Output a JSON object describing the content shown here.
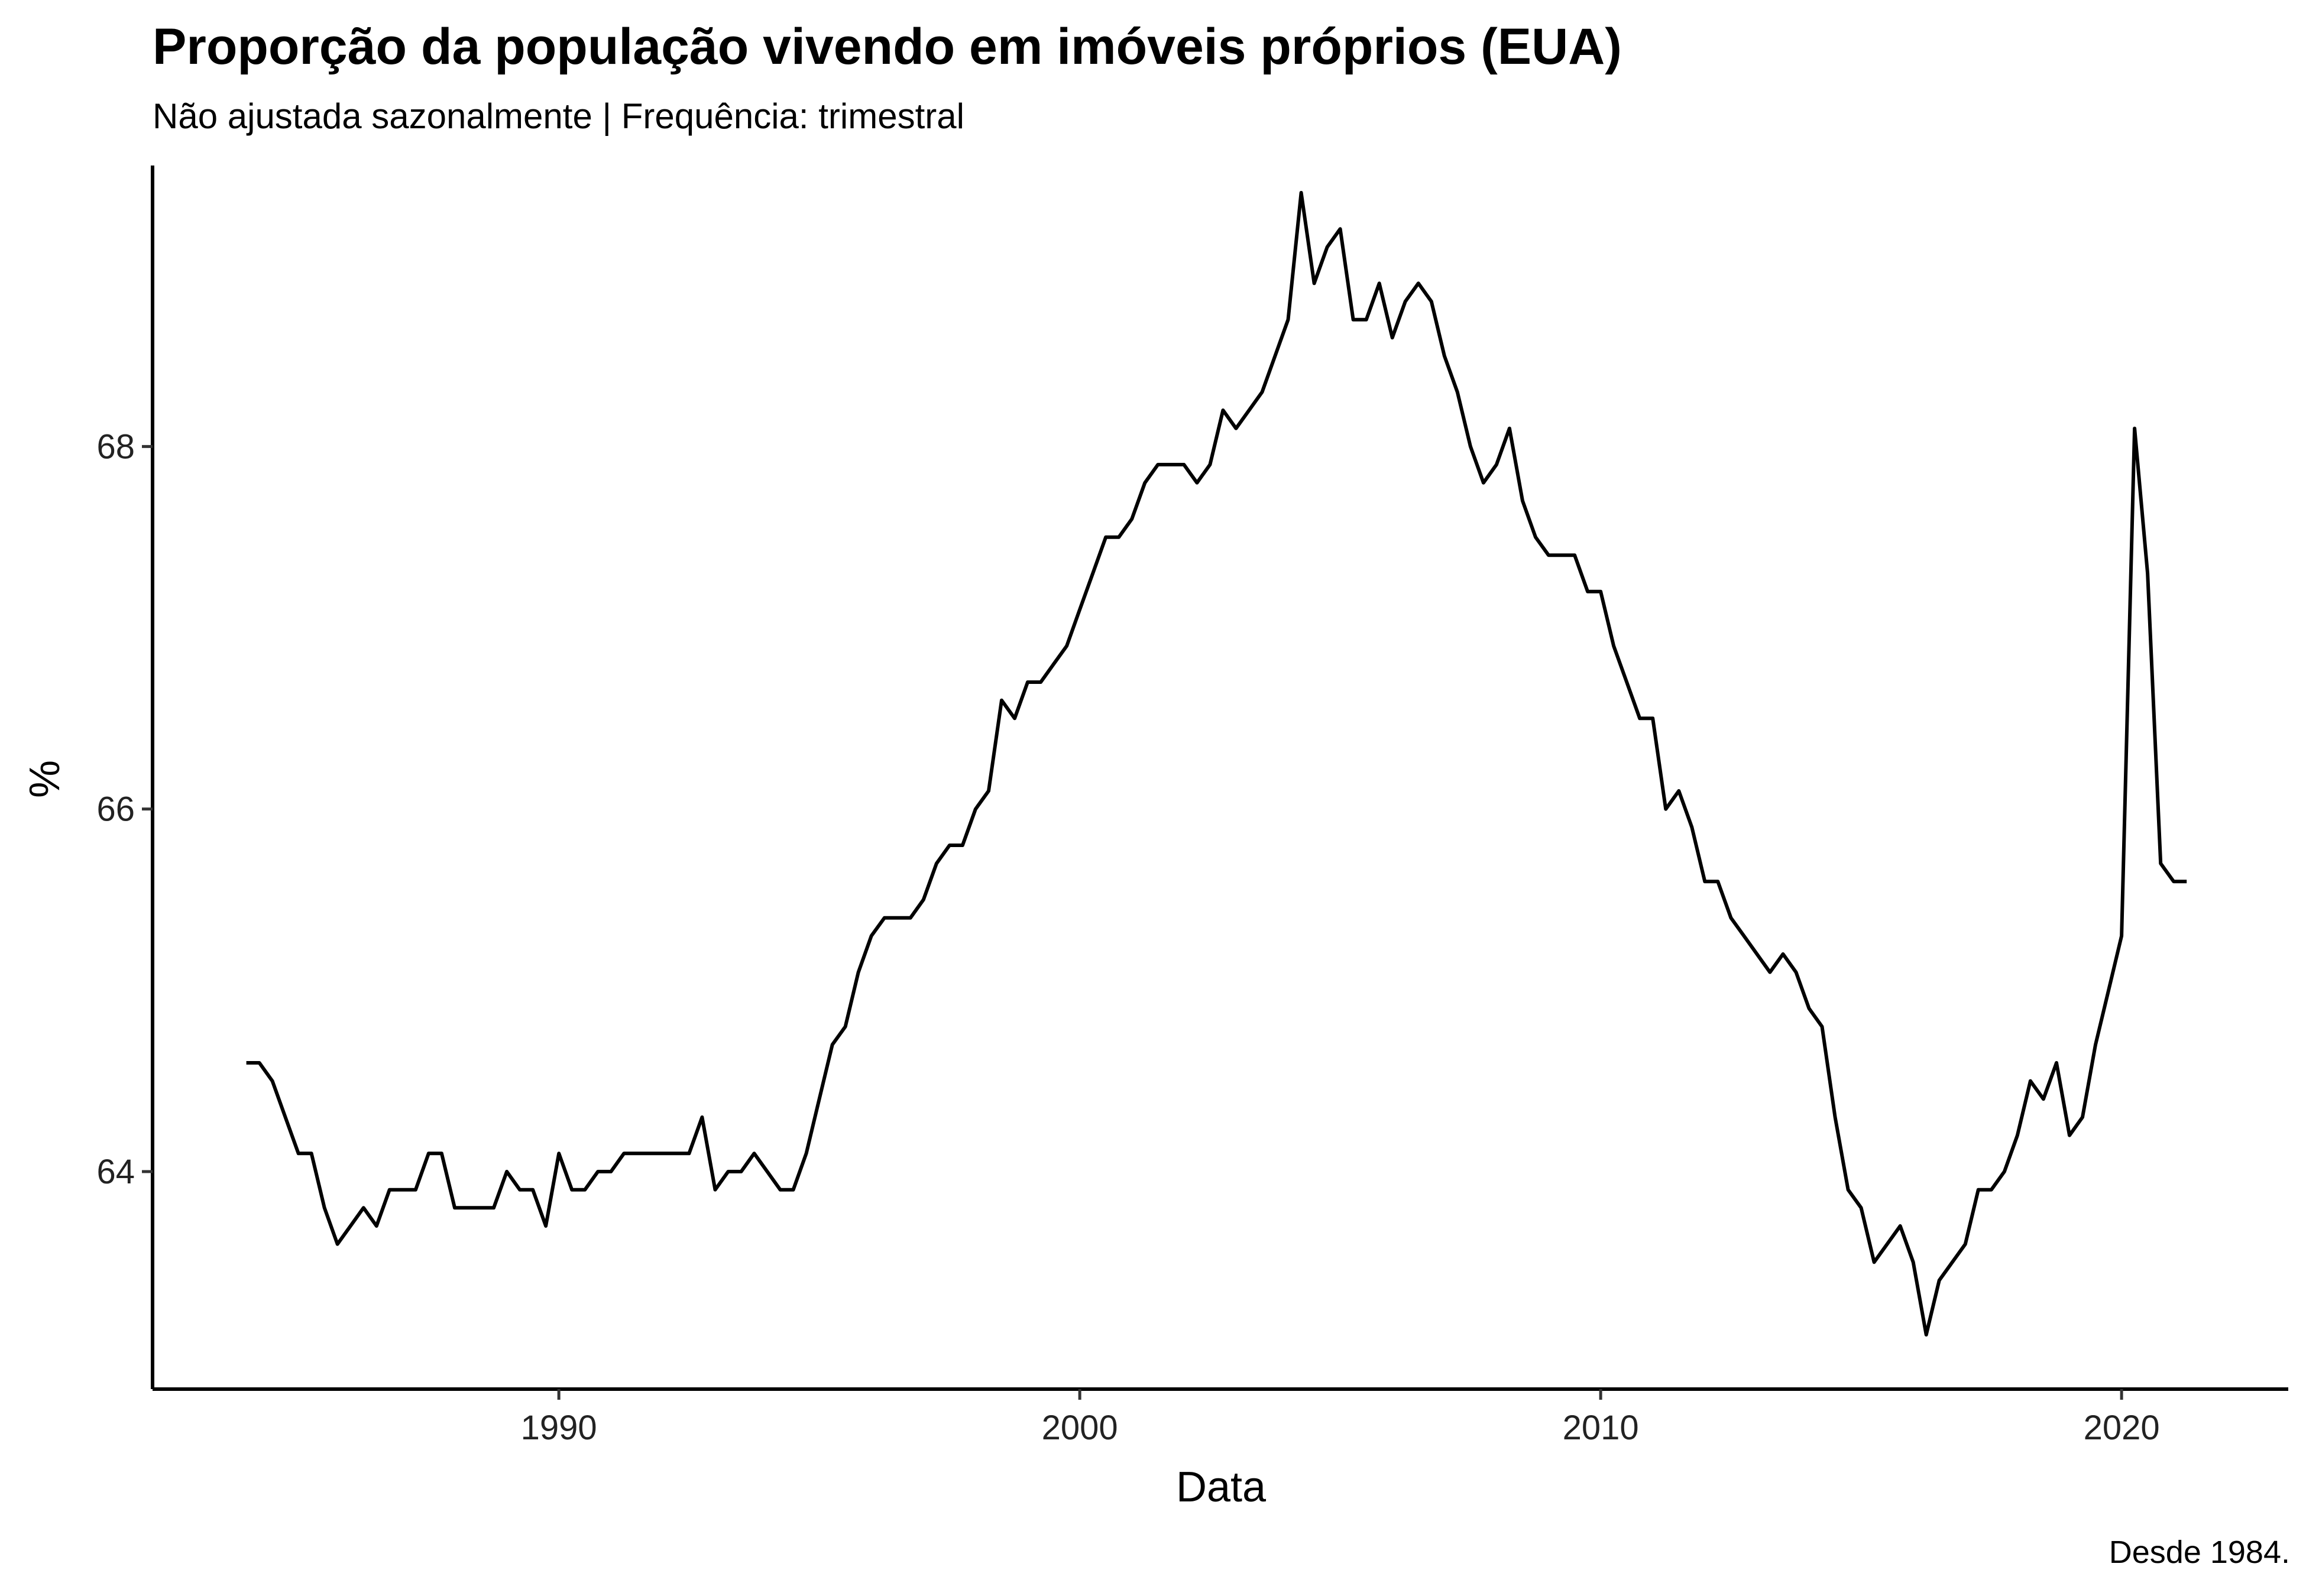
{
  "chart_data": {
    "type": "line",
    "title": "Proporção da população vivendo em imóveis próprios (EUA)",
    "subtitle": "Não ajustada sazonalmente | Frequência: trimestral",
    "caption": "Desde 1984.",
    "xlabel": "Data",
    "ylabel": "%",
    "xlim": [
      1982.2,
      2023.2
    ],
    "ylim": [
      62.8,
      69.55
    ],
    "x_ticks": [
      1990,
      2000,
      2010,
      2020
    ],
    "y_ticks": [
      64,
      66,
      68
    ],
    "grid": false,
    "line_color": "#000000",
    "series": [
      {
        "x": [
          1984.0,
          1984.25,
          1984.5,
          1984.75,
          1985.0,
          1985.25,
          1985.5,
          1985.75,
          1986.0,
          1986.25,
          1986.5,
          1986.75,
          1987.0,
          1987.25,
          1987.5,
          1987.75,
          1988.0,
          1988.25,
          1988.5,
          1988.75,
          1989.0,
          1989.25,
          1989.5,
          1989.75,
          1990.0,
          1990.25,
          1990.5,
          1990.75,
          1991.0,
          1991.25,
          1991.5,
          1991.75,
          1992.0,
          1992.25,
          1992.5,
          1992.75,
          1993.0,
          1993.25,
          1993.5,
          1993.75,
          1994.0,
          1994.25,
          1994.5,
          1994.75,
          1995.0,
          1995.25,
          1995.5,
          1995.75,
          1996.0,
          1996.25,
          1996.5,
          1996.75,
          1997.0,
          1997.25,
          1997.5,
          1997.75,
          1998.0,
          1998.25,
          1998.5,
          1998.75,
          1999.0,
          1999.25,
          1999.5,
          1999.75,
          2000.0,
          2000.25,
          2000.5,
          2000.75,
          2001.0,
          2001.25,
          2001.5,
          2001.75,
          2002.0,
          2002.25,
          2002.5,
          2002.75,
          2003.0,
          2003.25,
          2003.5,
          2003.75,
          2004.0,
          2004.25,
          2004.5,
          2004.75,
          2005.0,
          2005.25,
          2005.5,
          2005.75,
          2006.0,
          2006.25,
          2006.5,
          2006.75,
          2007.0,
          2007.25,
          2007.5,
          2007.75,
          2008.0,
          2008.25,
          2008.5,
          2008.75,
          2009.0,
          2009.25,
          2009.5,
          2009.75,
          2010.0,
          2010.25,
          2010.5,
          2010.75,
          2011.0,
          2011.25,
          2011.5,
          2011.75,
          2012.0,
          2012.25,
          2012.5,
          2012.75,
          2013.0,
          2013.25,
          2013.5,
          2013.75,
          2014.0,
          2014.25,
          2014.5,
          2014.75,
          2015.0,
          2015.25,
          2015.5,
          2015.75,
          2016.0,
          2016.25,
          2016.5,
          2016.75,
          2017.0,
          2017.25,
          2017.5,
          2017.75,
          2018.0,
          2018.25,
          2018.5,
          2018.75,
          2019.0,
          2019.25,
          2019.5,
          2019.75,
          2020.0,
          2020.25,
          2020.5,
          2020.75,
          2021.0,
          2021.25
        ],
        "y": [
          64.6,
          64.6,
          64.5,
          64.3,
          64.1,
          64.1,
          63.8,
          63.6,
          63.7,
          63.8,
          63.7,
          63.9,
          63.9,
          63.9,
          64.1,
          64.1,
          63.8,
          63.8,
          63.8,
          63.8,
          64.0,
          63.9,
          63.9,
          63.7,
          64.1,
          63.9,
          63.9,
          64.0,
          64.0,
          64.1,
          64.1,
          64.1,
          64.1,
          64.1,
          64.1,
          64.3,
          63.9,
          64.0,
          64.0,
          64.1,
          64.0,
          63.9,
          63.9,
          64.1,
          64.4,
          64.7,
          64.8,
          65.1,
          65.3,
          65.4,
          65.4,
          65.4,
          65.5,
          65.7,
          65.8,
          65.8,
          66.0,
          66.1,
          66.6,
          66.5,
          66.7,
          66.7,
          66.8,
          66.9,
          67.1,
          67.3,
          67.5,
          67.5,
          67.6,
          67.8,
          67.9,
          67.9,
          67.9,
          67.8,
          67.9,
          68.2,
          68.1,
          68.2,
          68.3,
          68.5,
          68.7,
          69.4,
          68.9,
          69.1,
          69.2,
          68.7,
          68.7,
          68.9,
          68.6,
          68.8,
          68.9,
          68.8,
          68.5,
          68.3,
          68.0,
          67.8,
          67.9,
          68.1,
          67.7,
          67.5,
          67.4,
          67.4,
          67.4,
          67.2,
          67.2,
          66.9,
          66.7,
          66.5,
          66.5,
          66.0,
          66.1,
          65.9,
          65.6,
          65.6,
          65.4,
          65.3,
          65.2,
          65.1,
          65.2,
          65.1,
          64.9,
          64.8,
          64.3,
          63.9,
          63.8,
          63.5,
          63.6,
          63.7,
          63.5,
          63.1,
          63.4,
          63.5,
          63.6,
          63.9,
          63.9,
          64.0,
          64.2,
          64.5,
          64.4,
          64.6,
          64.2,
          64.3,
          64.7,
          65.0,
          65.3,
          68.1,
          67.3,
          65.7,
          65.6,
          65.6
        ]
      }
    ]
  }
}
